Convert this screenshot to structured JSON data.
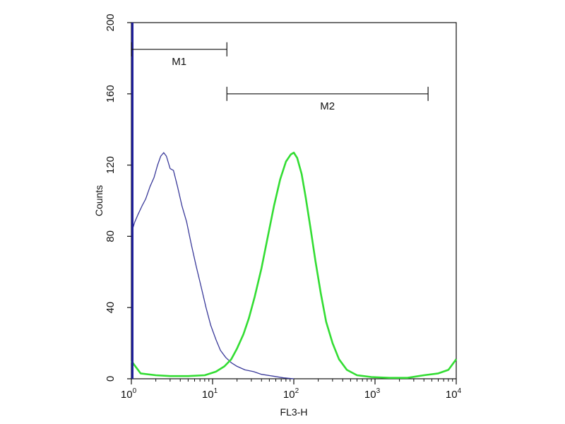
{
  "chart_data": {
    "type": "line",
    "title": "",
    "xlabel": "FL3-H",
    "ylabel": "Counts",
    "xscale": "log",
    "xlim": [
      1,
      10000
    ],
    "ylim": [
      0,
      200
    ],
    "grid": false,
    "x_ticks": [
      {
        "value": 1,
        "base": "10",
        "exp": "0"
      },
      {
        "value": 10,
        "base": "10",
        "exp": "1"
      },
      {
        "value": 100,
        "base": "10",
        "exp": "2"
      },
      {
        "value": 1000,
        "base": "10",
        "exp": "3"
      },
      {
        "value": 10000,
        "base": "10",
        "exp": "4"
      }
    ],
    "y_ticks": [
      {
        "value": 0,
        "label": "0"
      },
      {
        "value": 40,
        "label": "40"
      },
      {
        "value": 80,
        "label": "80"
      },
      {
        "value": 120,
        "label": "120"
      },
      {
        "value": 160,
        "label": "160"
      },
      {
        "value": 200,
        "label": "200"
      }
    ],
    "markers": [
      {
        "label": "M1",
        "x_start": 1,
        "x_end": 15,
        "y": 185
      },
      {
        "label": "M2",
        "x_start": 15,
        "x_end": 4500,
        "y": 160
      }
    ],
    "series": [
      {
        "color": "#3a3a9a",
        "x": [
          1.05,
          1.1,
          1.2,
          1.35,
          1.5,
          1.7,
          1.9,
          2.1,
          2.3,
          2.5,
          2.7,
          3.0,
          3.3,
          3.7,
          4.2,
          4.8,
          5.5,
          6.3,
          7.2,
          8.3,
          9.5,
          11,
          12.5,
          14.5,
          17,
          20,
          25,
          32,
          40,
          55,
          75,
          100
        ],
        "y": [
          85,
          88,
          92,
          97,
          101,
          108,
          113,
          120,
          125,
          127,
          125,
          118,
          117,
          108,
          97,
          88,
          75,
          63,
          52,
          40,
          30,
          22,
          16,
          12,
          9,
          7,
          5,
          4,
          2.5,
          1.5,
          0.5,
          0
        ]
      },
      {
        "color": "#33dd33",
        "x": [
          1.0,
          1.3,
          2,
          3,
          5,
          8,
          11,
          14,
          17,
          20,
          24,
          28,
          33,
          40,
          48,
          57,
          68,
          80,
          92,
          100,
          110,
          125,
          140,
          160,
          185,
          215,
          250,
          300,
          360,
          450,
          600,
          900,
          1500,
          2500,
          4000,
          6000,
          8000,
          10000
        ],
        "y": [
          10,
          3,
          2,
          1.5,
          1.5,
          2,
          4,
          7,
          11,
          17,
          25,
          34,
          46,
          62,
          80,
          97,
          112,
          122,
          126,
          127,
          124,
          115,
          102,
          85,
          66,
          48,
          32,
          20,
          11,
          5,
          2,
          1,
          0.5,
          0.5,
          2,
          3,
          5,
          11
        ]
      }
    ]
  }
}
